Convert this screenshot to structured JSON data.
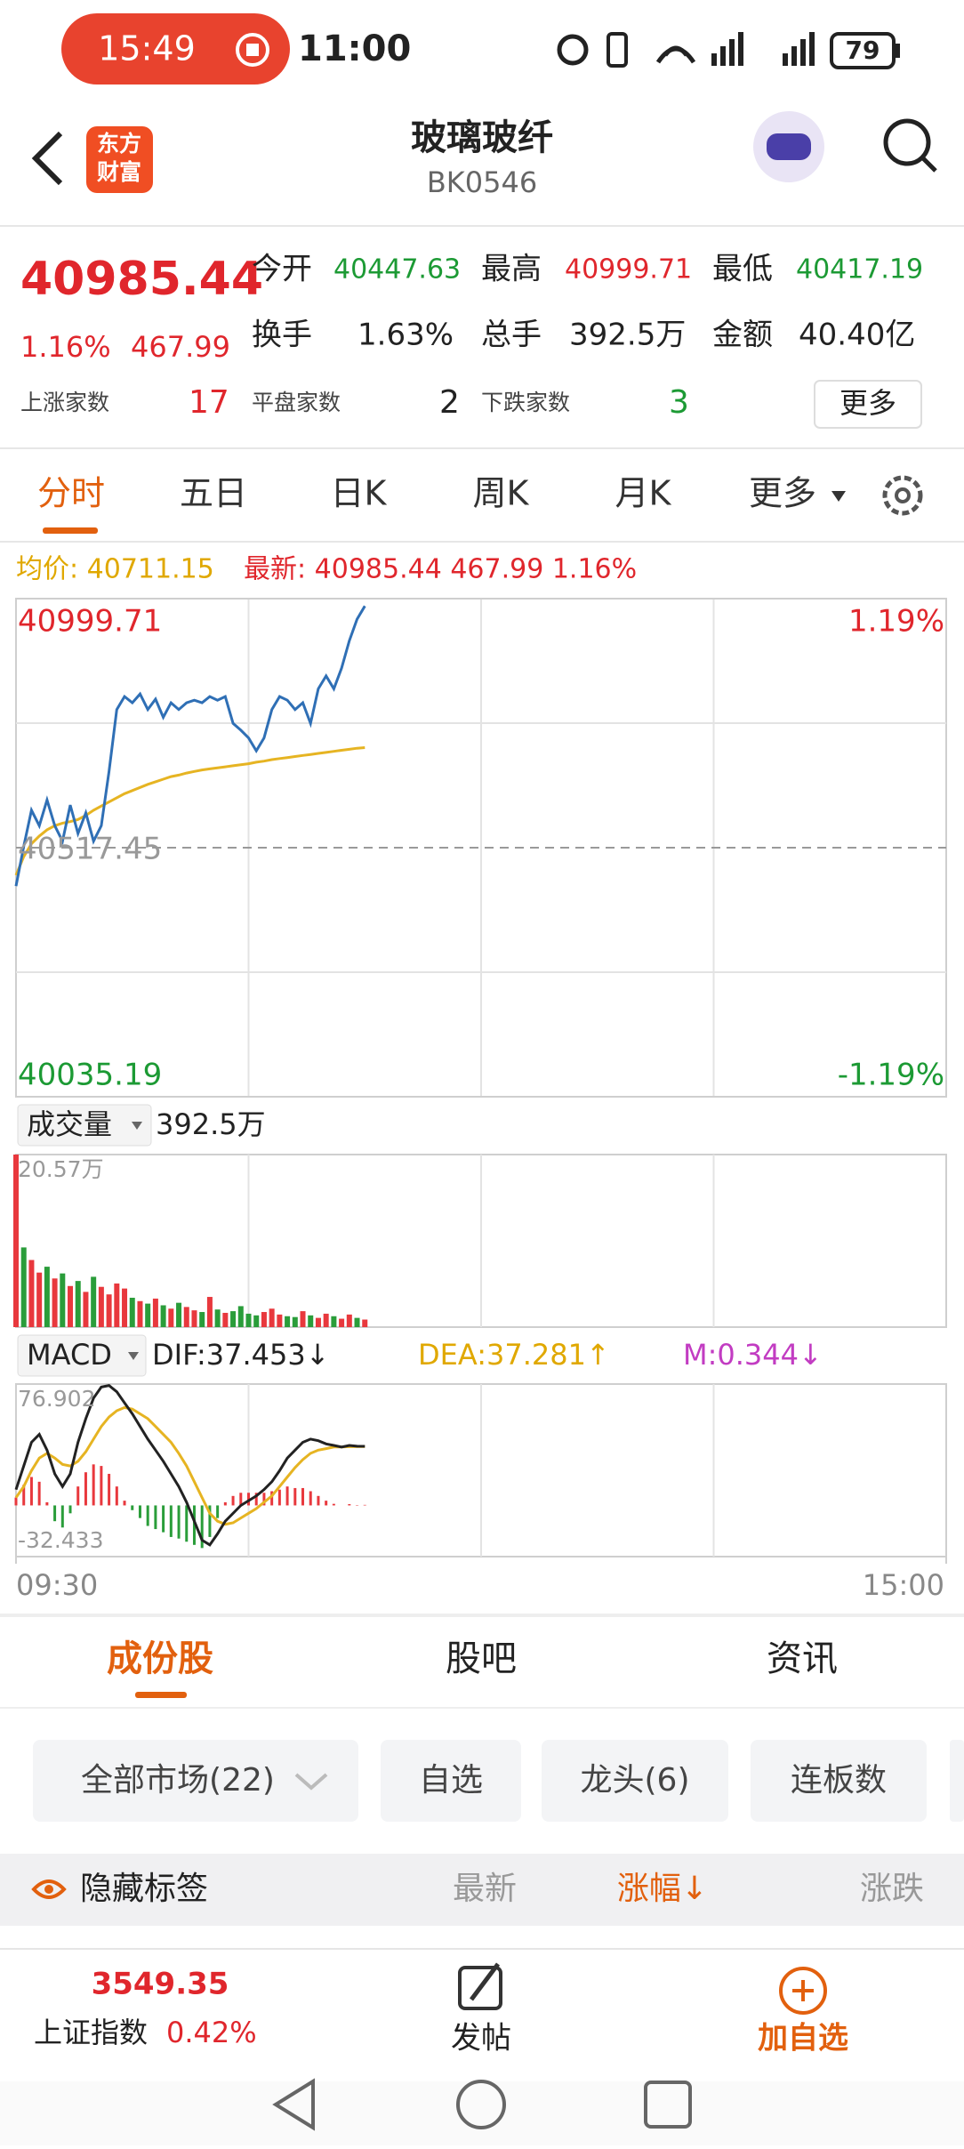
{
  "status_bar": {
    "recording_time": "15:49",
    "time": "11:00",
    "battery": 79
  },
  "header": {
    "logo": [
      "东方",
      "财富"
    ],
    "title": "玻璃玻纤",
    "code": "BK0546"
  },
  "quote": {
    "price": "40985.44",
    "change_pct": "1.16%",
    "change": "467.99",
    "stats": [
      {
        "label": "今开",
        "value": "40447.63"
      },
      {
        "label": "最高",
        "value": "40999.71"
      },
      {
        "label": "最低",
        "value": "40417.19"
      },
      {
        "label": "换手",
        "value": "1.63%"
      },
      {
        "label": "总手",
        "value": "392.5万"
      },
      {
        "label": "金额",
        "value": "40.40亿"
      }
    ],
    "breadth": [
      {
        "label": "上涨家数",
        "value": 17
      },
      {
        "label": "平盘家数",
        "value": 2
      },
      {
        "label": "下跌家数",
        "value": 3
      }
    ],
    "more": "更多"
  },
  "chart_tabs": [
    "分时",
    "五日",
    "日K",
    "周K",
    "月K",
    "更多"
  ],
  "legend": {
    "avg": "均价: 40711.15",
    "last": "最新: 40985.44 467.99 1.16%"
  },
  "time_axis": {
    "xlim": [
      0,
      240
    ],
    "xticks": [
      {
        "value": 0,
        "label": "09:30"
      },
      {
        "value": 240,
        "label": "15:00"
      }
    ],
    "x": [
      0,
      2,
      4,
      6,
      8,
      10,
      12,
      14,
      16,
      18,
      20,
      22,
      24,
      26,
      28,
      30,
      32,
      34,
      36,
      38,
      40,
      42,
      44,
      46,
      48,
      50,
      52,
      54,
      56,
      58,
      60,
      62,
      64,
      66,
      68,
      70,
      72,
      74,
      76,
      78,
      80,
      82,
      84,
      86,
      88,
      90
    ]
  },
  "intraday": {
    "type": "line",
    "ylim": [
      40035.19,
      40999.71
    ],
    "yticks": [
      40035.19,
      40517.45,
      40999.71
    ],
    "y2lim": [
      -1.19,
      1.19
    ],
    "y2ticks": [
      {
        "value": 1.19,
        "label": "1.19%"
      },
      {
        "value": -1.19,
        "label": "-1.19%"
      }
    ],
    "price": {
      "color": "#2f6fb5",
      "values": [
        40443,
        40520,
        40590,
        40560,
        40610,
        40560,
        40530,
        40600,
        40545,
        40585,
        40530,
        40560,
        40665,
        40785,
        40810,
        40798,
        40815,
        40785,
        40805,
        40770,
        40798,
        40785,
        40798,
        40803,
        40798,
        40810,
        40803,
        40810,
        40758,
        40745,
        40730,
        40705,
        40730,
        40785,
        40810,
        40803,
        40785,
        40798,
        40758,
        40825,
        40850,
        40825,
        40865,
        40918,
        40960,
        40985.44
      ]
    },
    "average": {
      "color": "#e6b422",
      "values": [
        40464,
        40500,
        40525,
        40540,
        40552,
        40560,
        40565,
        40568,
        40572,
        40580,
        40590,
        40598,
        40606,
        40614,
        40622,
        40628,
        40634,
        40640,
        40645,
        40650,
        40655,
        40658,
        40662,
        40665,
        40668,
        40670,
        40672,
        40674,
        40676,
        40678,
        40680,
        40683,
        40685,
        40688,
        40690,
        40692,
        40694,
        40696,
        40698,
        40700,
        40702,
        40704,
        40706,
        40708,
        40710,
        40711.15
      ]
    }
  },
  "volume": {
    "type": "bar",
    "selector": "成交量",
    "total": "392.5万",
    "ylim": [
      0,
      20.57
    ],
    "yticks": [
      {
        "value": 20.57,
        "label": "20.57万"
      }
    ],
    "values": [
      20.57,
      9.5,
      8.0,
      6.5,
      7.2,
      5.8,
      6.4,
      4.9,
      5.5,
      4.2,
      6.0,
      4.8,
      3.9,
      5.2,
      4.6,
      3.5,
      3.1,
      2.8,
      3.4,
      2.6,
      2.2,
      2.9,
      2.4,
      2.0,
      1.8,
      3.6,
      2.1,
      1.7,
      1.9,
      2.5,
      1.6,
      1.4,
      1.8,
      2.2,
      1.5,
      1.3,
      1.2,
      1.9,
      1.4,
      1.1,
      1.6,
      1.3,
      1.0,
      1.5,
      1.1,
      0.9
    ],
    "colors": [
      "#e8383d",
      "#2a9d3a",
      "#e8383d",
      "#e8383d",
      "#2a9d3a",
      "#e8383d",
      "#2a9d3a",
      "#e8383d",
      "#2a9d3a",
      "#e8383d",
      "#2a9d3a",
      "#e8383d",
      "#e8383d",
      "#e8383d",
      "#e8383d",
      "#2a9d3a",
      "#e8383d",
      "#2a9d3a",
      "#e8383d",
      "#2a9d3a",
      "#e8383d",
      "#2a9d3a",
      "#e8383d",
      "#e8383d",
      "#2a9d3a",
      "#e8383d",
      "#2a9d3a",
      "#e8383d",
      "#2a9d3a",
      "#2a9d3a",
      "#2a9d3a",
      "#2a9d3a",
      "#e8383d",
      "#e8383d",
      "#e8383d",
      "#2a9d3a",
      "#2a9d3a",
      "#e8383d",
      "#2a9d3a",
      "#e8383d",
      "#e8383d",
      "#2a9d3a",
      "#e8383d",
      "#e8383d",
      "#2a9d3a",
      "#e8383d"
    ]
  },
  "macd": {
    "type": "line",
    "selector": "MACD",
    "dif_label": "DIF:37.453↓",
    "dea_label": "DEA:37.281↑",
    "m_label": "M:0.344↓",
    "ylim": [
      -32.433,
      76.902
    ],
    "yticks": [
      76.902,
      -32.433
    ],
    "dif": {
      "color": "#222222",
      "values": [
        10,
        25,
        40,
        45,
        35,
        20,
        12,
        20,
        40,
        55,
        68,
        75,
        76,
        72,
        65,
        58,
        50,
        42,
        35,
        28,
        20,
        12,
        2,
        -10,
        -22,
        -25,
        -18,
        -10,
        -5,
        0,
        3,
        6,
        10,
        15,
        22,
        30,
        35,
        40,
        42,
        41,
        39,
        38,
        37,
        38,
        37.5,
        37.453
      ]
    },
    "dea": {
      "color": "#e6b422",
      "values": [
        5,
        12,
        22,
        30,
        33,
        30,
        26,
        25,
        28,
        34,
        42,
        50,
        56,
        60,
        62,
        61,
        58,
        55,
        50,
        45,
        40,
        33,
        25,
        15,
        5,
        -5,
        -10,
        -12,
        -11,
        -8,
        -5,
        -2,
        2,
        6,
        12,
        18,
        24,
        29,
        33,
        35,
        36,
        37,
        37,
        37.2,
        37.25,
        37.281
      ]
    },
    "hist": {
      "up_color": "#e8383d",
      "down_color": "#2a9d3a",
      "values": [
        5,
        13,
        18,
        15,
        2,
        -10,
        -14,
        -5,
        12,
        21,
        26,
        25,
        20,
        12,
        3,
        -3,
        -8,
        -13,
        -15,
        -17,
        -20,
        -21,
        -23,
        -25,
        -27,
        -20,
        -8,
        2,
        6,
        8,
        8,
        8,
        8,
        9,
        10,
        12,
        11,
        11,
        9,
        6,
        3,
        1,
        0,
        0.8,
        0.25,
        0.344
      ]
    }
  },
  "section_tabs": [
    "成份股",
    "股吧",
    "资讯"
  ],
  "filters": [
    "全部市场(22)",
    "自选",
    "龙头(6)",
    "连板数"
  ],
  "list_header": {
    "toggle": "隐藏标签",
    "columns": [
      "最新",
      "涨幅↓",
      "涨跌"
    ]
  },
  "bottom_bar": {
    "index_value": "3549.35",
    "index_name": "上证指数",
    "index_change": "0.42%",
    "post": "发帖",
    "add": "加自选"
  }
}
